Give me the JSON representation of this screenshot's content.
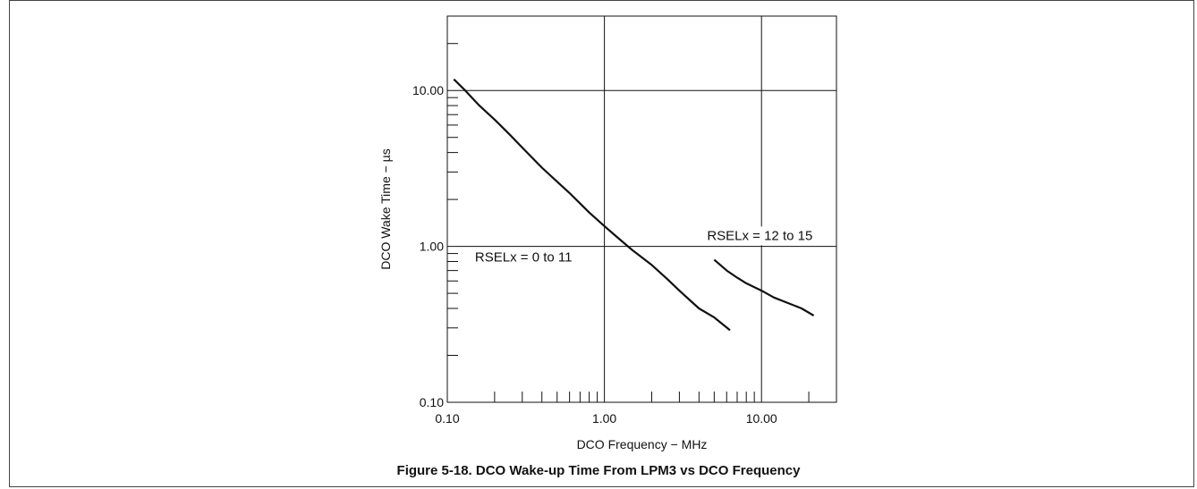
{
  "figure_caption": "Figure 5-18. DCO Wake-up Time From LPM3 vs DCO Frequency",
  "chart_data": {
    "type": "line",
    "xlabel": "DCO Frequency − MHz",
    "ylabel": "DCO Wake Time − µs",
    "x_scale": "log",
    "y_scale": "log",
    "xlim": [
      0.1,
      30
    ],
    "ylim": [
      0.1,
      30
    ],
    "x_tick_labels": [
      "0.10",
      "1.00",
      "10.00"
    ],
    "x_ticks": [
      0.1,
      1,
      10
    ],
    "y_tick_labels": [
      "0.10",
      "1.00",
      "10.00"
    ],
    "y_ticks": [
      0.1,
      1,
      10
    ],
    "grid": true,
    "series": [
      {
        "name": "RSELx = 0 to 11",
        "x": [
          0.11,
          0.13,
          0.16,
          0.2,
          0.25,
          0.3,
          0.4,
          0.5,
          0.6,
          0.8,
          1.0,
          1.2,
          1.5,
          2.0,
          2.5,
          3.0,
          4.0,
          5.0,
          6.3
        ],
        "y": [
          11.8,
          10.0,
          8.0,
          6.5,
          5.2,
          4.3,
          3.2,
          2.6,
          2.2,
          1.65,
          1.35,
          1.15,
          0.95,
          0.76,
          0.62,
          0.52,
          0.4,
          0.35,
          0.29
        ]
      },
      {
        "name": "RSELx = 12 to 15",
        "x": [
          5.0,
          6.0,
          7.0,
          8.0,
          10.0,
          12.0,
          15.0,
          18.0,
          21.5
        ],
        "y": [
          0.82,
          0.7,
          0.63,
          0.58,
          0.52,
          0.47,
          0.43,
          0.4,
          0.36
        ]
      }
    ],
    "annotations": [
      {
        "text": "RSELx = 0 to 11",
        "x": 0.15,
        "y": 0.8
      },
      {
        "text": "RSELx = 12 to 15",
        "x": 4.5,
        "y": 1.1
      }
    ]
  }
}
